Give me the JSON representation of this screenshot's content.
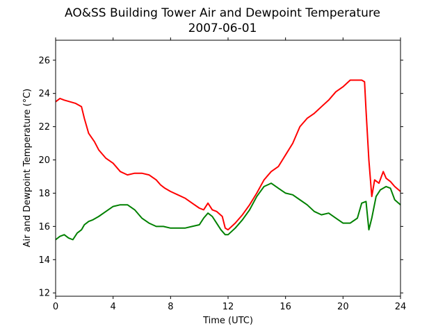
{
  "chart_data": {
    "type": "line",
    "title": "AO&SS Building Tower Air and Dewpoint Temperature",
    "subtitle": "2007-06-01",
    "xlabel": "Time (UTC)",
    "ylabel": "Air and Dewpoint Temperature (°C)",
    "xlim": [
      0,
      24
    ],
    "ylim": [
      11.8,
      27.2
    ],
    "xticks": [
      0,
      4,
      8,
      12,
      16,
      20,
      24
    ],
    "yticks": [
      12,
      14,
      16,
      18,
      20,
      22,
      24,
      26
    ],
    "grid": false,
    "legend": "none",
    "series": [
      {
        "color": "#ff0000",
        "x": [
          0,
          0.3,
          0.6,
          1.0,
          1.4,
          1.8,
          2.0,
          2.3,
          2.7,
          3.0,
          3.5,
          4.0,
          4.5,
          5.0,
          5.5,
          6.0,
          6.5,
          7.0,
          7.3,
          7.6,
          8.0,
          8.5,
          9.0,
          9.5,
          10.0,
          10.3,
          10.6,
          10.9,
          11.2,
          11.6,
          11.8,
          12.0,
          12.5,
          13.0,
          13.5,
          14.0,
          14.5,
          15.0,
          15.5,
          16.0,
          16.5,
          17.0,
          17.5,
          18.0,
          18.5,
          19.0,
          19.5,
          20.0,
          20.5,
          21.0,
          21.3,
          21.5,
          21.6,
          21.8,
          22.0,
          22.2,
          22.5,
          22.8,
          23.0,
          23.3,
          23.6,
          24.0
        ],
        "values": [
          23.5,
          23.7,
          23.6,
          23.5,
          23.4,
          23.2,
          22.5,
          21.6,
          21.1,
          20.6,
          20.1,
          19.8,
          19.3,
          19.1,
          19.2,
          19.2,
          19.1,
          18.8,
          18.5,
          18.3,
          18.1,
          17.9,
          17.7,
          17.4,
          17.1,
          17.0,
          17.4,
          17.0,
          16.9,
          16.6,
          15.9,
          15.8,
          16.2,
          16.7,
          17.3,
          18.0,
          18.8,
          19.3,
          19.6,
          20.3,
          21.0,
          22.0,
          22.5,
          22.8,
          23.2,
          23.6,
          24.1,
          24.4,
          24.8,
          24.8,
          24.8,
          24.7,
          23.0,
          20.0,
          17.8,
          18.8,
          18.6,
          19.3,
          18.9,
          18.7,
          18.4,
          18.1
        ]
      },
      {
        "color": "#008000",
        "x": [
          0,
          0.3,
          0.6,
          0.9,
          1.2,
          1.5,
          1.8,
          2.0,
          2.3,
          2.6,
          3.0,
          3.5,
          4.0,
          4.5,
          5.0,
          5.5,
          6.0,
          6.5,
          7.0,
          7.5,
          8.0,
          8.5,
          9.0,
          9.5,
          10.0,
          10.3,
          10.6,
          10.9,
          11.2,
          11.5,
          11.8,
          12.0,
          12.5,
          13.0,
          13.5,
          14.0,
          14.5,
          15.0,
          15.5,
          16.0,
          16.5,
          17.0,
          17.5,
          18.0,
          18.5,
          19.0,
          19.5,
          20.0,
          20.5,
          21.0,
          21.3,
          21.6,
          21.8,
          22.0,
          22.3,
          22.6,
          23.0,
          23.3,
          23.6,
          24.0
        ],
        "values": [
          15.2,
          15.4,
          15.5,
          15.3,
          15.2,
          15.6,
          15.8,
          16.1,
          16.3,
          16.4,
          16.6,
          16.9,
          17.2,
          17.3,
          17.3,
          17.0,
          16.5,
          16.2,
          16.0,
          16.0,
          15.9,
          15.9,
          15.9,
          16.0,
          16.1,
          16.5,
          16.8,
          16.6,
          16.2,
          15.8,
          15.5,
          15.5,
          15.9,
          16.4,
          17.0,
          17.8,
          18.4,
          18.6,
          18.3,
          18.0,
          17.9,
          17.6,
          17.3,
          16.9,
          16.7,
          16.8,
          16.5,
          16.2,
          16.2,
          16.5,
          17.4,
          17.5,
          15.8,
          16.5,
          17.8,
          18.2,
          18.4,
          18.3,
          17.6,
          17.3
        ]
      }
    ]
  }
}
